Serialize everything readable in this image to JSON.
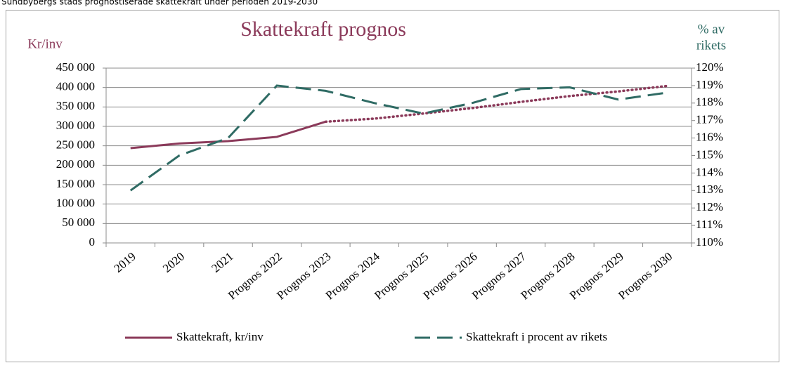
{
  "caption": "Sundbybergs stads prognostiserade skattekraft under perioden 2019-2030",
  "chart_data": {
    "type": "line",
    "title": "Skattekraft prognos",
    "y_label": "Kr/inv",
    "y2_label": [
      "% av",
      "rikets"
    ],
    "categories": [
      "2019",
      "2020",
      "2021",
      "Prognos 2022",
      "Prognos 2023",
      "Prognos 2024",
      "Prognos 2025",
      "Prognos 2026",
      "Prognos 2027",
      "Prognos 2028",
      "Prognos 2029",
      "Prognos 2030"
    ],
    "series": [
      {
        "name": "Skattekraft, kr/inv",
        "color": "#8b3a5a",
        "line_style": "solid",
        "dotted_from": 4,
        "values": [
          244000,
          256000,
          262000,
          273000,
          312000,
          320000,
          333000,
          347000,
          363000,
          378000,
          390000,
          404000
        ]
      },
      {
        "name": "Skattekraft i procent av rikets",
        "color": "#2f6b64",
        "line_style": "dashed",
        "axis": "y2",
        "values": [
          113.0,
          115.0,
          116.0,
          119.0,
          118.7,
          118.0,
          117.4,
          118.0,
          118.8,
          118.9,
          118.2,
          118.6
        ]
      }
    ],
    "ylim": [
      0,
      450000
    ],
    "yticks": [
      0,
      {
        "value": 50000,
        "label": "50 000"
      },
      {
        "value": 100000,
        "label": "100 000"
      },
      {
        "value": 150000,
        "label": "150 000"
      },
      {
        "value": 200000,
        "label": "200 000"
      },
      {
        "value": 250000,
        "label": "250 000"
      },
      {
        "value": 300000,
        "label": "300 000"
      },
      {
        "value": 350000,
        "label": "350 000"
      },
      {
        "value": 400000,
        "label": "400 000"
      },
      {
        "value": 450000,
        "label": "450 000"
      }
    ],
    "y2lim": [
      110,
      120
    ],
    "y2ticks": [
      {
        "value": 110,
        "label": "110%"
      },
      {
        "value": 111,
        "label": "111%"
      },
      {
        "value": 112,
        "label": "112%"
      },
      {
        "value": 113,
        "label": "113%"
      },
      {
        "value": 114,
        "label": "114%"
      },
      {
        "value": 115,
        "label": "115%"
      },
      {
        "value": 116,
        "label": "116%"
      },
      {
        "value": 117,
        "label": "117%"
      },
      {
        "value": 118,
        "label": "118%"
      },
      {
        "value": 119,
        "label": "119%"
      },
      {
        "value": 120,
        "label": "120%"
      }
    ],
    "grid": true,
    "legend": "bottom"
  }
}
